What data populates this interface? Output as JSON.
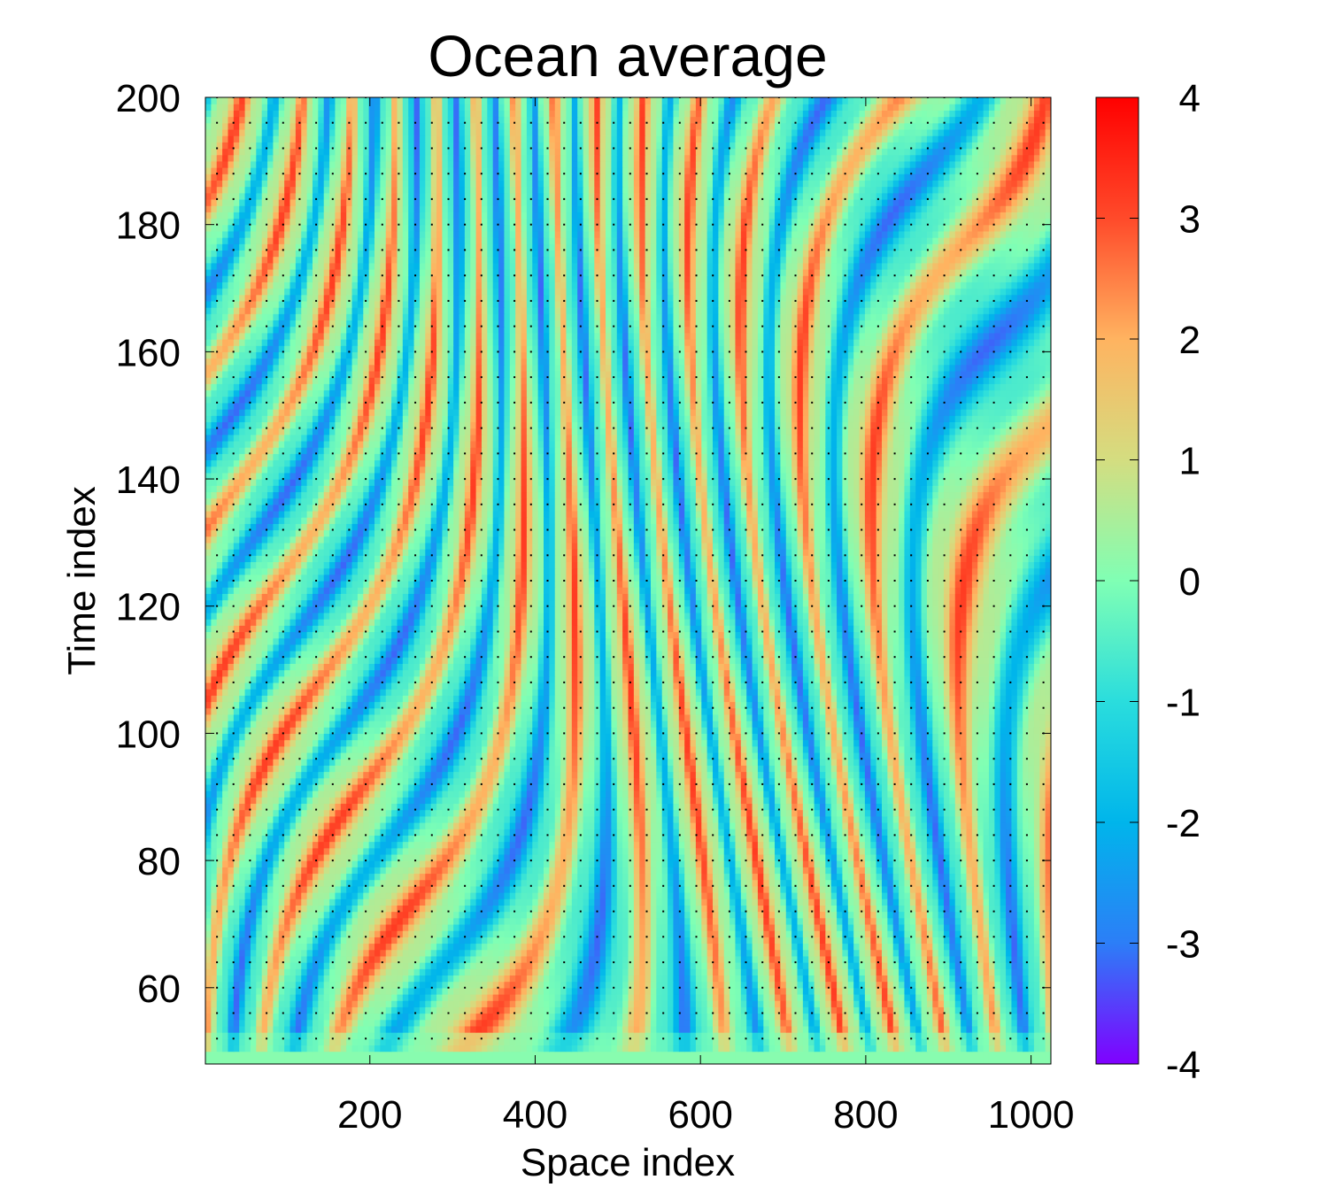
{
  "chart_data": {
    "type": "heatmap",
    "title": "Ocean average",
    "xlabel": "Space index",
    "ylabel": "Time index",
    "xlim": [
      1,
      1024
    ],
    "ylim": [
      48,
      200
    ],
    "x_ticks": [
      200,
      400,
      600,
      800,
      1000
    ],
    "y_ticks": [
      60,
      80,
      100,
      120,
      140,
      160,
      180,
      200
    ],
    "colorbar": {
      "range": [
        -4,
        4
      ],
      "ticks": [
        4,
        3,
        2,
        1,
        0,
        -1,
        -2,
        -3,
        -4
      ],
      "colors": [
        "#8000ff",
        "#2c7ef7",
        "#00b5eb",
        "#2adddd",
        "#80ffb4",
        "#d4dd80",
        "#ffb360",
        "#ff4a2a",
        "#ff0000"
      ]
    },
    "grid": "dotted",
    "field": {
      "description": "space-time field of travelling, merging stripes; values between -4 and 4",
      "x_samples": 150,
      "y_samples": 152
    }
  }
}
